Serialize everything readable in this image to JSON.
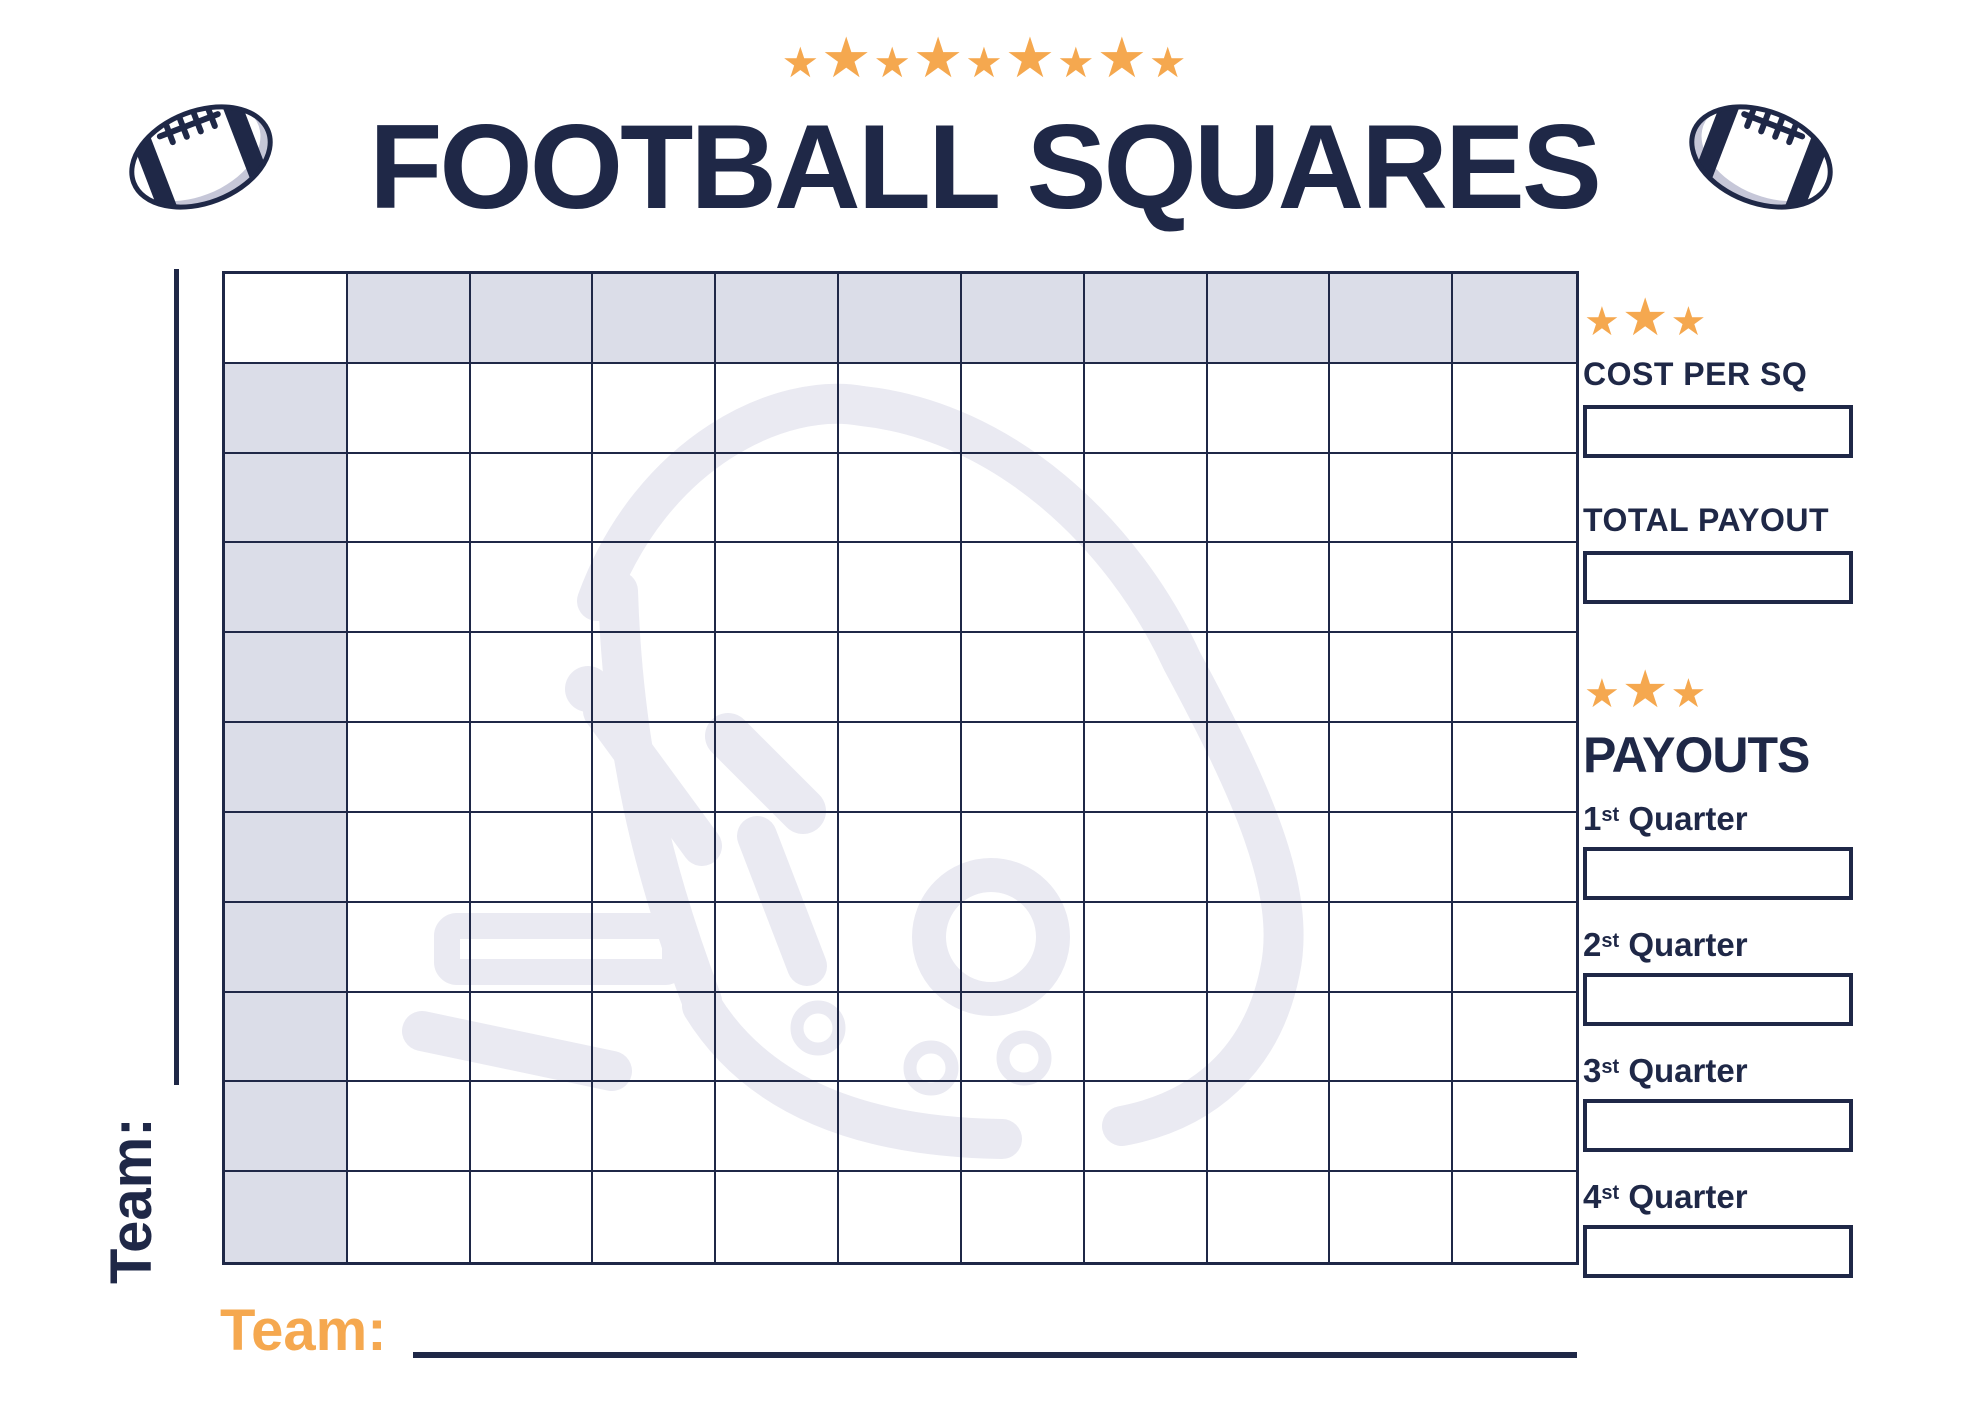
{
  "header": {
    "stars_count": 9,
    "title": "FOOTBALL SQUARES"
  },
  "grid": {
    "rows": 11,
    "cols": 11,
    "header_row_values": [
      "",
      "",
      "",
      "",
      "",
      "",
      "",
      "",
      "",
      ""
    ],
    "header_col_values": [
      "",
      "",
      "",
      "",
      "",
      "",
      "",
      "",
      "",
      ""
    ]
  },
  "teams": {
    "left_label": "Team:",
    "left_value": "",
    "bottom_label": "Team:",
    "bottom_value": ""
  },
  "sidebar": {
    "stars_top_count": 3,
    "cost_per_sq": {
      "label": "COST PER SQ",
      "value": ""
    },
    "total_payout": {
      "label": "TOTAL PAYOUT",
      "value": ""
    },
    "stars_payouts_count": 3,
    "payouts": {
      "heading": "PAYOUTS",
      "quarters": [
        {
          "number": "1",
          "suffix": "st",
          "word": "Quarter",
          "value": ""
        },
        {
          "number": "2",
          "suffix": "st",
          "word": "Quarter",
          "value": ""
        },
        {
          "number": "3",
          "suffix": "st",
          "word": "Quarter",
          "value": ""
        },
        {
          "number": "4",
          "suffix": "st",
          "word": "Quarter",
          "value": ""
        }
      ]
    }
  },
  "colors": {
    "navy": "#1f2847",
    "orange": "#f5a84f",
    "cell_shade": "#dbdde8",
    "watermark": "#eaeaf2",
    "football_shadow": "#c6c7d8"
  }
}
